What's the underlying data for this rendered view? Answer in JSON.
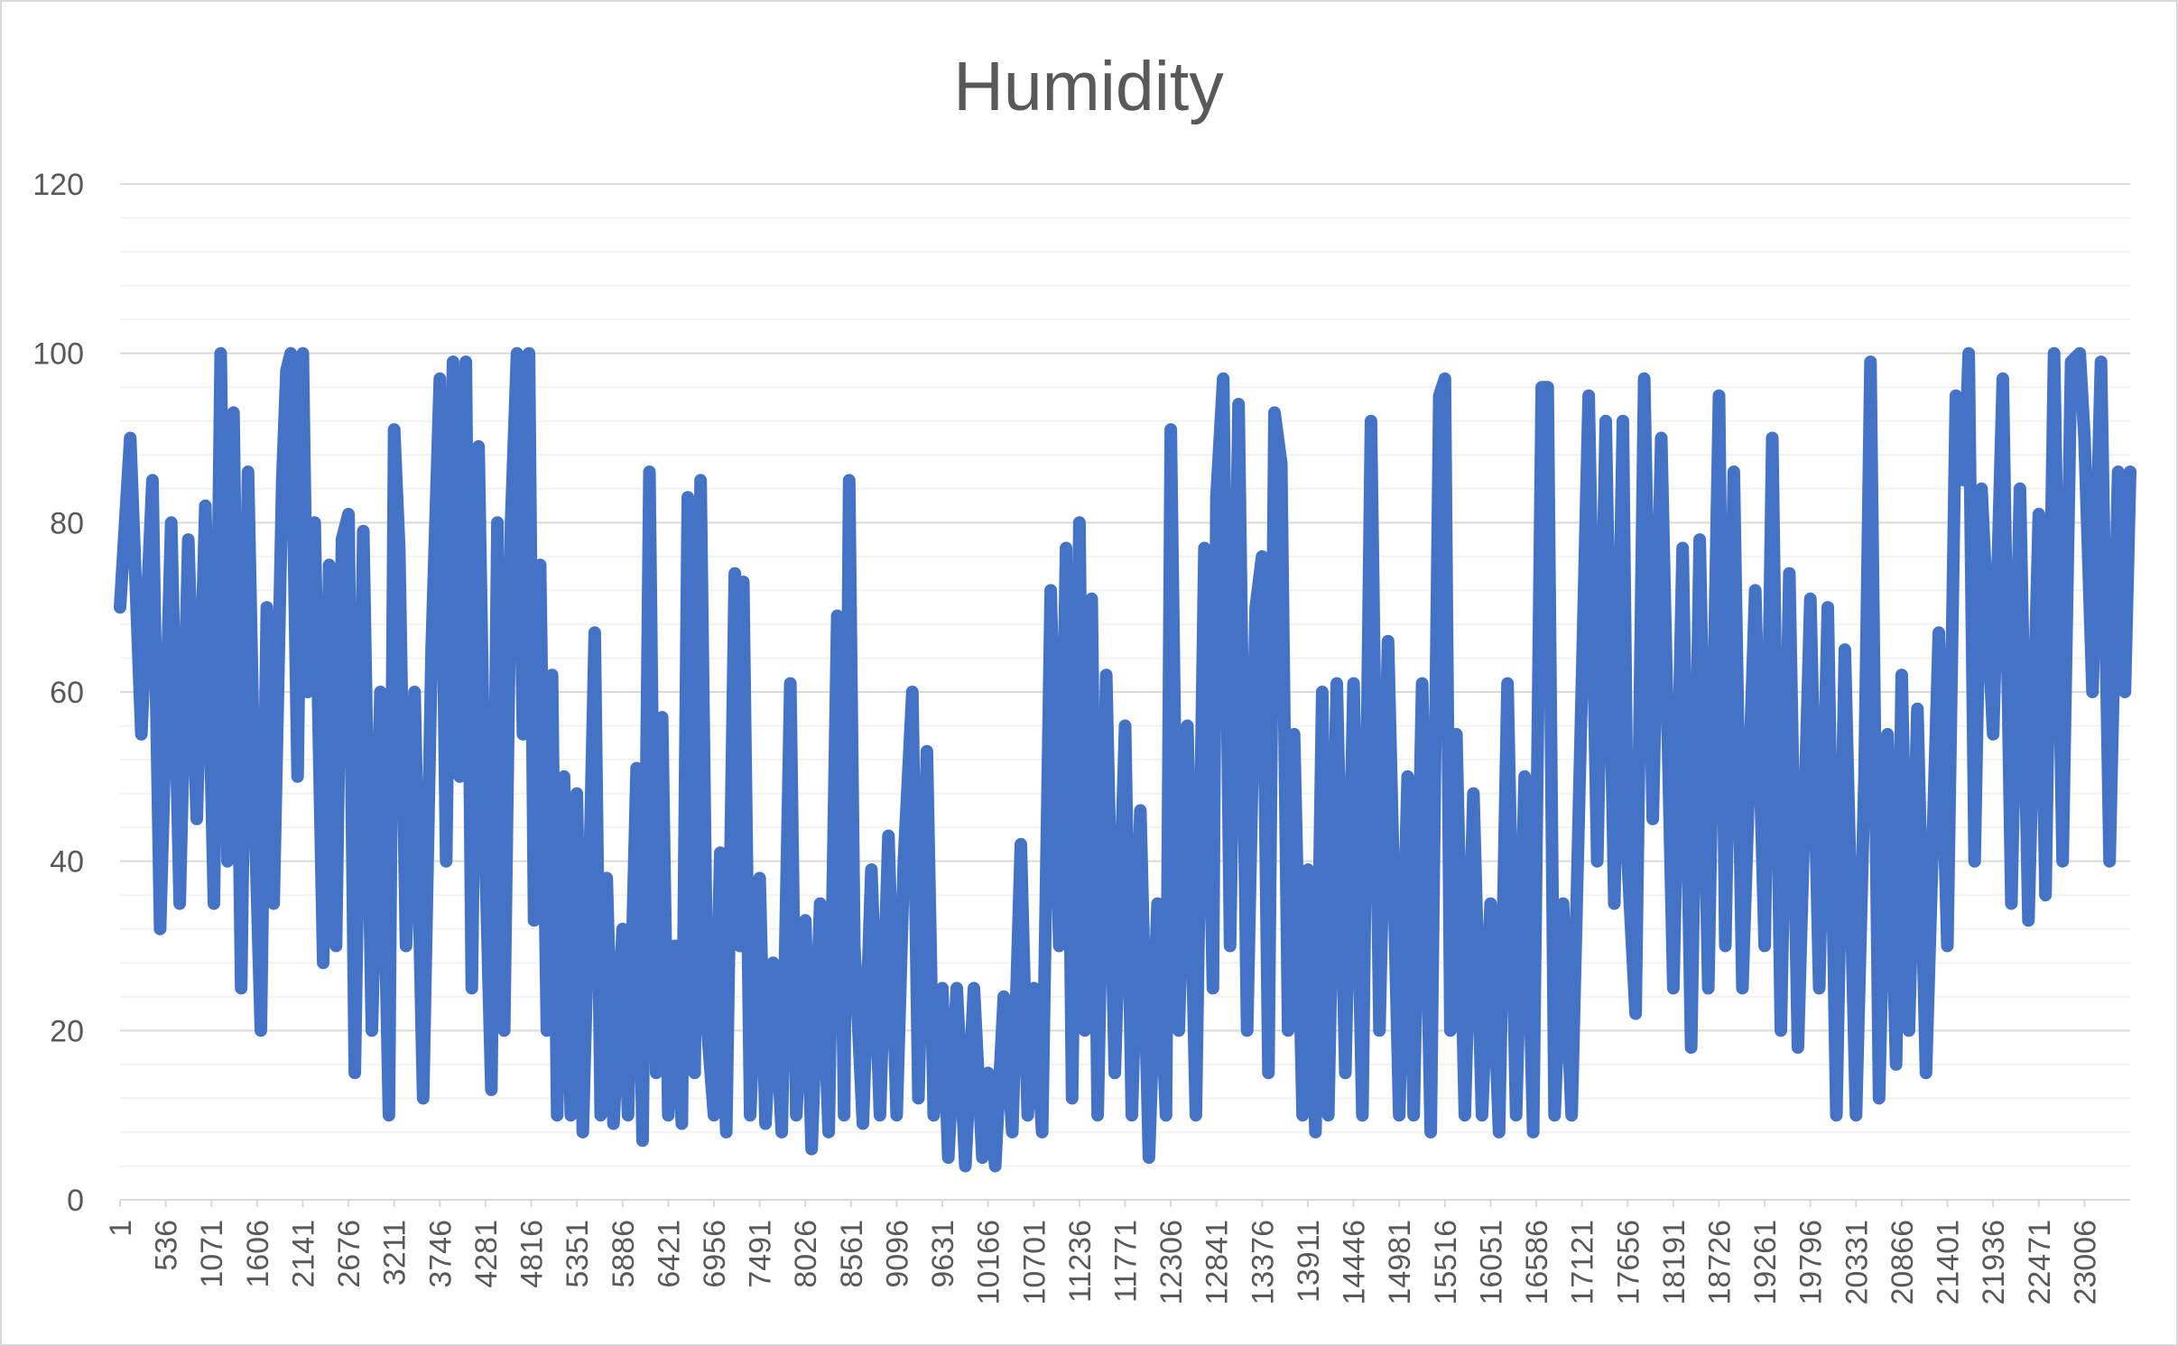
{
  "chart_data": {
    "type": "line",
    "title": "Humidity",
    "xlabel": "",
    "ylabel": "",
    "ylim": [
      0,
      120
    ],
    "yticks": [
      0,
      20,
      40,
      60,
      80,
      100,
      120
    ],
    "x_range": [
      1,
      23541
    ],
    "x_tick_labels": [
      "1",
      "536",
      "1071",
      "1606",
      "2141",
      "2676",
      "3211",
      "3746",
      "4281",
      "4816",
      "5351",
      "5886",
      "6421",
      "6956",
      "7491",
      "8026",
      "8561",
      "9096",
      "9631",
      "10166",
      "10701",
      "11236",
      "11771",
      "12306",
      "12841",
      "13376",
      "13911",
      "14446",
      "14981",
      "15516",
      "16051",
      "16586",
      "17121",
      "17656",
      "18191",
      "18726",
      "19261",
      "19796",
      "20331",
      "20866",
      "21401",
      "21936",
      "22471",
      "23006"
    ],
    "grid": true,
    "legend": "none",
    "color": "#4472c4",
    "series": [
      {
        "values": [
          [
            1,
            70
          ],
          [
            120,
            90
          ],
          [
            250,
            55
          ],
          [
            380,
            85
          ],
          [
            470,
            32
          ],
          [
            600,
            80
          ],
          [
            700,
            35
          ],
          [
            800,
            78
          ],
          [
            900,
            45
          ],
          [
            1000,
            82
          ],
          [
            1100,
            35
          ],
          [
            1180,
            100
          ],
          [
            1260,
            40
          ],
          [
            1330,
            93
          ],
          [
            1420,
            25
          ],
          [
            1500,
            86
          ],
          [
            1580,
            45
          ],
          [
            1650,
            20
          ],
          [
            1720,
            70
          ],
          [
            1800,
            35
          ],
          [
            1900,
            85
          ],
          [
            1950,
            98
          ],
          [
            2000,
            100
          ],
          [
            2080,
            50
          ],
          [
            2141,
            100
          ],
          [
            2200,
            60
          ],
          [
            2280,
            80
          ],
          [
            2380,
            28
          ],
          [
            2450,
            75
          ],
          [
            2530,
            30
          ],
          [
            2600,
            78
          ],
          [
            2676,
            81
          ],
          [
            2750,
            15
          ],
          [
            2850,
            79
          ],
          [
            2950,
            20
          ],
          [
            3050,
            60
          ],
          [
            3150,
            10
          ],
          [
            3211,
            91
          ],
          [
            3270,
            77
          ],
          [
            3350,
            30
          ],
          [
            3450,
            60
          ],
          [
            3550,
            12
          ],
          [
            3650,
            65
          ],
          [
            3746,
            97
          ],
          [
            3820,
            40
          ],
          [
            3900,
            99
          ],
          [
            3980,
            50
          ],
          [
            4050,
            99
          ],
          [
            4120,
            25
          ],
          [
            4200,
            89
          ],
          [
            4281,
            40
          ],
          [
            4350,
            13
          ],
          [
            4420,
            80
          ],
          [
            4500,
            20
          ],
          [
            4580,
            80
          ],
          [
            4650,
            100
          ],
          [
            4720,
            55
          ],
          [
            4790,
            100
          ],
          [
            4850,
            33
          ],
          [
            4920,
            75
          ],
          [
            5000,
            20
          ],
          [
            5060,
            62
          ],
          [
            5120,
            10
          ],
          [
            5200,
            50
          ],
          [
            5280,
            10
          ],
          [
            5351,
            48
          ],
          [
            5420,
            8
          ],
          [
            5500,
            39
          ],
          [
            5560,
            67
          ],
          [
            5630,
            10
          ],
          [
            5700,
            38
          ],
          [
            5780,
            9
          ],
          [
            5886,
            32
          ],
          [
            5950,
            10
          ],
          [
            6050,
            51
          ],
          [
            6120,
            7
          ],
          [
            6200,
            86
          ],
          [
            6280,
            15
          ],
          [
            6350,
            57
          ],
          [
            6421,
            10
          ],
          [
            6500,
            30
          ],
          [
            6580,
            9
          ],
          [
            6650,
            83
          ],
          [
            6730,
            15
          ],
          [
            6800,
            85
          ],
          [
            6880,
            20
          ],
          [
            6956,
            10
          ],
          [
            7030,
            41
          ],
          [
            7100,
            8
          ],
          [
            7200,
            74
          ],
          [
            7260,
            30
          ],
          [
            7300,
            73
          ],
          [
            7380,
            10
          ],
          [
            7491,
            38
          ],
          [
            7560,
            9
          ],
          [
            7650,
            28
          ],
          [
            7750,
            8
          ],
          [
            7850,
            61
          ],
          [
            7920,
            10
          ],
          [
            8026,
            33
          ],
          [
            8100,
            6
          ],
          [
            8200,
            35
          ],
          [
            8300,
            8
          ],
          [
            8400,
            69
          ],
          [
            8480,
            10
          ],
          [
            8540,
            85
          ],
          [
            8600,
            30
          ],
          [
            8700,
            9
          ],
          [
            8800,
            39
          ],
          [
            8900,
            10
          ],
          [
            9000,
            43
          ],
          [
            9096,
            10
          ],
          [
            9180,
            40
          ],
          [
            9280,
            60
          ],
          [
            9350,
            12
          ],
          [
            9450,
            53
          ],
          [
            9530,
            10
          ],
          [
            9631,
            25
          ],
          [
            9700,
            5
          ],
          [
            9800,
            25
          ],
          [
            9900,
            4
          ],
          [
            10000,
            25
          ],
          [
            10100,
            5
          ],
          [
            10166,
            15
          ],
          [
            10250,
            4
          ],
          [
            10350,
            24
          ],
          [
            10450,
            8
          ],
          [
            10550,
            42
          ],
          [
            10630,
            10
          ],
          [
            10701,
            25
          ],
          [
            10800,
            8
          ],
          [
            10900,
            72
          ],
          [
            11000,
            30
          ],
          [
            11080,
            77
          ],
          [
            11150,
            12
          ],
          [
            11236,
            80
          ],
          [
            11300,
            20
          ],
          [
            11380,
            71
          ],
          [
            11450,
            10
          ],
          [
            11550,
            62
          ],
          [
            11650,
            15
          ],
          [
            11771,
            56
          ],
          [
            11850,
            10
          ],
          [
            11950,
            46
          ],
          [
            12050,
            5
          ],
          [
            12150,
            35
          ],
          [
            12250,
            10
          ],
          [
            12306,
            91
          ],
          [
            12400,
            20
          ],
          [
            12500,
            56
          ],
          [
            12600,
            10
          ],
          [
            12700,
            77
          ],
          [
            12800,
            25
          ],
          [
            12841,
            83
          ],
          [
            12920,
            97
          ],
          [
            13000,
            30
          ],
          [
            13100,
            94
          ],
          [
            13200,
            20
          ],
          [
            13300,
            70
          ],
          [
            13376,
            76
          ],
          [
            13450,
            15
          ],
          [
            13520,
            93
          ],
          [
            13600,
            87
          ],
          [
            13680,
            20
          ],
          [
            13750,
            55
          ],
          [
            13850,
            10
          ],
          [
            13911,
            39
          ],
          [
            14000,
            8
          ],
          [
            14080,
            60
          ],
          [
            14150,
            10
          ],
          [
            14250,
            61
          ],
          [
            14350,
            15
          ],
          [
            14446,
            61
          ],
          [
            14550,
            10
          ],
          [
            14650,
            92
          ],
          [
            14750,
            20
          ],
          [
            14850,
            66
          ],
          [
            14981,
            10
          ],
          [
            15080,
            50
          ],
          [
            15150,
            10
          ],
          [
            15250,
            61
          ],
          [
            15350,
            8
          ],
          [
            15450,
            95
          ],
          [
            15516,
            97
          ],
          [
            15580,
            20
          ],
          [
            15650,
            55
          ],
          [
            15750,
            10
          ],
          [
            15850,
            48
          ],
          [
            15950,
            10
          ],
          [
            16051,
            35
          ],
          [
            16150,
            8
          ],
          [
            16250,
            61
          ],
          [
            16350,
            10
          ],
          [
            16450,
            50
          ],
          [
            16550,
            8
          ],
          [
            16650,
            96
          ],
          [
            16720,
            96
          ],
          [
            16800,
            10
          ],
          [
            16900,
            35
          ],
          [
            17000,
            10
          ],
          [
            17121,
            61
          ],
          [
            17200,
            95
          ],
          [
            17300,
            40
          ],
          [
            17400,
            92
          ],
          [
            17500,
            35
          ],
          [
            17600,
            92
          ],
          [
            17656,
            40
          ],
          [
            17750,
            22
          ],
          [
            17850,
            97
          ],
          [
            17950,
            45
          ],
          [
            18050,
            90
          ],
          [
            18191,
            25
          ],
          [
            18300,
            77
          ],
          [
            18400,
            18
          ],
          [
            18500,
            78
          ],
          [
            18600,
            25
          ],
          [
            18726,
            95
          ],
          [
            18800,
            30
          ],
          [
            18900,
            86
          ],
          [
            19000,
            25
          ],
          [
            19150,
            72
          ],
          [
            19261,
            30
          ],
          [
            19350,
            90
          ],
          [
            19450,
            20
          ],
          [
            19550,
            74
          ],
          [
            19650,
            18
          ],
          [
            19796,
            71
          ],
          [
            19900,
            25
          ],
          [
            20000,
            70
          ],
          [
            20100,
            10
          ],
          [
            20200,
            65
          ],
          [
            20331,
            10
          ],
          [
            20430,
            50
          ],
          [
            20500,
            99
          ],
          [
            20600,
            12
          ],
          [
            20700,
            55
          ],
          [
            20800,
            16
          ],
          [
            20866,
            62
          ],
          [
            20950,
            20
          ],
          [
            21050,
            58
          ],
          [
            21150,
            15
          ],
          [
            21300,
            67
          ],
          [
            21401,
            30
          ],
          [
            21500,
            95
          ],
          [
            21600,
            85
          ],
          [
            21650,
            100
          ],
          [
            21720,
            40
          ],
          [
            21800,
            84
          ],
          [
            21936,
            55
          ],
          [
            22050,
            97
          ],
          [
            22150,
            35
          ],
          [
            22250,
            84
          ],
          [
            22350,
            33
          ],
          [
            22471,
            81
          ],
          [
            22550,
            36
          ],
          [
            22650,
            100
          ],
          [
            22750,
            40
          ],
          [
            22850,
            99
          ],
          [
            22950,
            100
          ],
          [
            23006,
            90
          ],
          [
            23100,
            60
          ],
          [
            23200,
            99
          ],
          [
            23300,
            40
          ],
          [
            23400,
            86
          ],
          [
            23480,
            60
          ],
          [
            23541,
            86
          ]
        ]
      }
    ]
  }
}
